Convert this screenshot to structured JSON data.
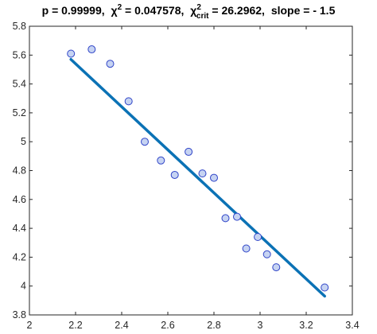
{
  "chart_data": {
    "type": "scatter",
    "title_parts": {
      "p": "p = 0.99999,",
      "chi": "χ",
      "chi_sup": "2",
      "chi_val": " = 0.047578,",
      "chi_crit": "χ",
      "chi_crit_sup": "2",
      "chi_crit_sub": "crit",
      "chi_crit_val": " = 26.2962,",
      "slope": "slope = - 1.5"
    },
    "xlim": [
      2,
      3.4
    ],
    "ylim": [
      3.8,
      5.8
    ],
    "xticks": [
      "2",
      "2.2",
      "2.4",
      "2.6",
      "2.8",
      "3",
      "3.2",
      "3.4"
    ],
    "yticks": [
      "3.8",
      "4",
      "4.2",
      "4.4",
      "4.6",
      "4.8",
      "5",
      "5.2",
      "5.4",
      "5.6",
      "5.8"
    ],
    "xtick_values": [
      2,
      2.2,
      2.4,
      2.6,
      2.8,
      3.0,
      3.2,
      3.4
    ],
    "ytick_values": [
      3.8,
      4.0,
      4.2,
      4.4,
      4.6,
      4.8,
      5.0,
      5.2,
      5.4,
      5.6,
      5.8
    ],
    "series": [
      {
        "kind": "points",
        "x": [
          2.18,
          2.27,
          2.35,
          2.43,
          2.5,
          2.57,
          2.63,
          2.69,
          2.75,
          2.8,
          2.85,
          2.9,
          2.94,
          2.99,
          3.03,
          3.07,
          3.28
        ],
        "y": [
          5.61,
          5.64,
          5.54,
          5.28,
          5.0,
          4.87,
          4.77,
          4.93,
          4.78,
          4.75,
          4.47,
          4.48,
          4.26,
          4.34,
          4.22,
          4.13,
          3.99
        ],
        "marker_color": "#c6d3f2",
        "edge_color": "#2f44c8"
      },
      {
        "kind": "fit",
        "x": [
          2.18,
          3.28
        ],
        "y": [
          5.57,
          3.93
        ],
        "line_color": "#0b72b5"
      }
    ],
    "grid": false
  }
}
